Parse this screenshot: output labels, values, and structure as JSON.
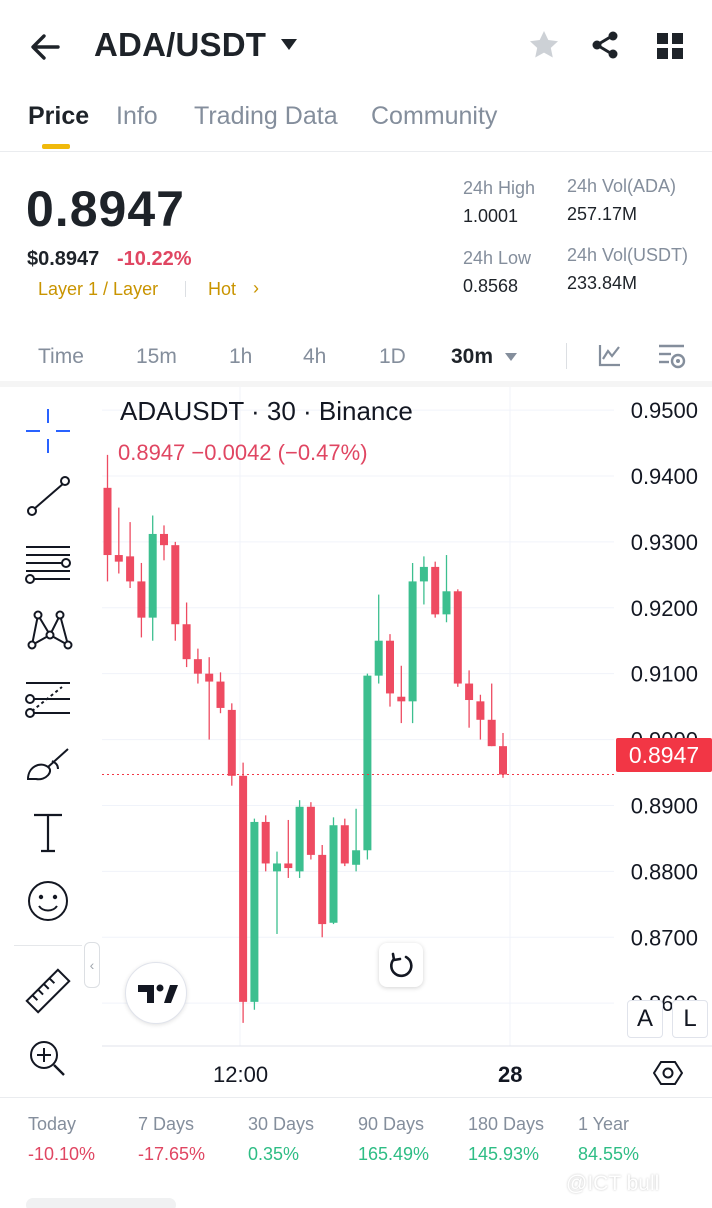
{
  "header": {
    "pair": "ADA/USDT",
    "icons": [
      "back-arrow-icon",
      "caret-down-icon",
      "star-icon",
      "share-icon",
      "grid-menu-icon"
    ]
  },
  "tabs": [
    {
      "label": "Price",
      "active": true
    },
    {
      "label": "Info",
      "active": false
    },
    {
      "label": "Trading Data",
      "active": false
    },
    {
      "label": "Community",
      "active": false
    }
  ],
  "ticker": {
    "price": "0.8947",
    "usd_price": "$0.8947",
    "change": "-10.22%",
    "tag_layer": "Layer 1 / Layer",
    "tag_hot": "Hot",
    "tag_chevron": "›",
    "stats": {
      "high_label": "24h High",
      "high_value": "1.0001",
      "low_label": "24h Low",
      "low_value": "0.8568",
      "vol_base_label": "24h Vol(ADA)",
      "vol_base_value": "257.17M",
      "vol_quote_label": "24h Vol(USDT)",
      "vol_quote_value": "233.84M"
    }
  },
  "timeframes": [
    {
      "label": "Time",
      "active": false
    },
    {
      "label": "15m",
      "active": false
    },
    {
      "label": "1h",
      "active": false
    },
    {
      "label": "4h",
      "active": false
    },
    {
      "label": "1D",
      "active": false
    },
    {
      "label": "30m",
      "active": true
    }
  ],
  "chart": {
    "title": "ADAUSDT · 30 · Binance",
    "ohlc_line": "0.8947  −0.0042 (−0.47%)",
    "last_price_label": "0.8947",
    "price_axis": [
      "0.9500",
      "0.9400",
      "0.9300",
      "0.9200",
      "0.9100",
      "0.9000",
      "0.8900",
      "0.8800",
      "0.8700",
      "0.8600"
    ],
    "time_axis": [
      "12:00",
      "28"
    ],
    "scale_buttons": [
      "A",
      "L"
    ],
    "collapse_glyph": "‹",
    "colors": {
      "up": "#26a69a",
      "up_fill": "#3cbf8f",
      "down": "#f23645",
      "down_fill": "#ee4b61"
    }
  },
  "tools": [
    "crosshair-icon",
    "trend-line-icon",
    "fib-lines-icon",
    "pattern-icon",
    "projection-icon",
    "brush-icon",
    "text-tool-icon",
    "emoji-icon",
    "ruler-icon",
    "zoom-in-icon"
  ],
  "chart_data": {
    "type": "candlestick",
    "title": "ADAUSDT · 30 · Binance",
    "ylim": [
      0.8535,
      0.9535
    ],
    "x_tick_labels": [
      "12:00",
      "28"
    ],
    "y_tick_labels": [
      "0.9500",
      "0.9400",
      "0.9300",
      "0.9200",
      "0.9100",
      "0.9000",
      "0.8900",
      "0.8800",
      "0.8700",
      "0.8600"
    ],
    "last_price": 0.8947,
    "candles": [
      {
        "o": 0.9382,
        "h": 0.9432,
        "l": 0.924,
        "c": 0.928
      },
      {
        "o": 0.928,
        "h": 0.9352,
        "l": 0.9252,
        "c": 0.927
      },
      {
        "o": 0.9278,
        "h": 0.933,
        "l": 0.923,
        "c": 0.924
      },
      {
        "o": 0.924,
        "h": 0.9268,
        "l": 0.9155,
        "c": 0.9185
      },
      {
        "o": 0.9185,
        "h": 0.934,
        "l": 0.915,
        "c": 0.9312
      },
      {
        "o": 0.9312,
        "h": 0.9325,
        "l": 0.9272,
        "c": 0.9295
      },
      {
        "o": 0.9295,
        "h": 0.93,
        "l": 0.915,
        "c": 0.9175
      },
      {
        "o": 0.9175,
        "h": 0.9208,
        "l": 0.911,
        "c": 0.9122
      },
      {
        "o": 0.9122,
        "h": 0.9138,
        "l": 0.9085,
        "c": 0.91
      },
      {
        "o": 0.91,
        "h": 0.9125,
        "l": 0.9,
        "c": 0.9088
      },
      {
        "o": 0.9088,
        "h": 0.9102,
        "l": 0.904,
        "c": 0.9048
      },
      {
        "o": 0.9045,
        "h": 0.9055,
        "l": 0.893,
        "c": 0.8945
      },
      {
        "o": 0.8945,
        "h": 0.8965,
        "l": 0.857,
        "c": 0.8602
      },
      {
        "o": 0.8602,
        "h": 0.888,
        "l": 0.859,
        "c": 0.8875
      },
      {
        "o": 0.8875,
        "h": 0.8885,
        "l": 0.88,
        "c": 0.8812
      },
      {
        "o": 0.88,
        "h": 0.883,
        "l": 0.8705,
        "c": 0.8812
      },
      {
        "o": 0.8812,
        "h": 0.8878,
        "l": 0.879,
        "c": 0.8805
      },
      {
        "o": 0.88,
        "h": 0.8908,
        "l": 0.879,
        "c": 0.8898
      },
      {
        "o": 0.8898,
        "h": 0.8905,
        "l": 0.8818,
        "c": 0.8825
      },
      {
        "o": 0.8825,
        "h": 0.884,
        "l": 0.87,
        "c": 0.872
      },
      {
        "o": 0.8722,
        "h": 0.8882,
        "l": 0.872,
        "c": 0.887
      },
      {
        "o": 0.887,
        "h": 0.888,
        "l": 0.8808,
        "c": 0.8812
      },
      {
        "o": 0.881,
        "h": 0.8895,
        "l": 0.88,
        "c": 0.8832
      },
      {
        "o": 0.8832,
        "h": 0.91,
        "l": 0.8818,
        "c": 0.9097
      },
      {
        "o": 0.9097,
        "h": 0.922,
        "l": 0.9085,
        "c": 0.915
      },
      {
        "o": 0.915,
        "h": 0.916,
        "l": 0.905,
        "c": 0.907
      },
      {
        "o": 0.9065,
        "h": 0.9112,
        "l": 0.9025,
        "c": 0.9058
      },
      {
        "o": 0.9058,
        "h": 0.9268,
        "l": 0.9025,
        "c": 0.924
      },
      {
        "o": 0.924,
        "h": 0.9278,
        "l": 0.9205,
        "c": 0.9262
      },
      {
        "o": 0.9262,
        "h": 0.927,
        "l": 0.9185,
        "c": 0.919
      },
      {
        "o": 0.919,
        "h": 0.928,
        "l": 0.9178,
        "c": 0.9225
      },
      {
        "o": 0.9225,
        "h": 0.9228,
        "l": 0.908,
        "c": 0.9085
      },
      {
        "o": 0.9085,
        "h": 0.9105,
        "l": 0.9018,
        "c": 0.906
      },
      {
        "o": 0.9058,
        "h": 0.9068,
        "l": 0.9,
        "c": 0.903
      },
      {
        "o": 0.903,
        "h": 0.9085,
        "l": 0.899,
        "c": 0.899
      },
      {
        "o": 0.899,
        "h": 0.901,
        "l": 0.8942,
        "c": 0.8947
      }
    ]
  },
  "performance": [
    {
      "label": "Today",
      "value": "-10.10%",
      "sign": "neg"
    },
    {
      "label": "7 Days",
      "value": "-17.65%",
      "sign": "neg"
    },
    {
      "label": "30 Days",
      "value": "0.35%",
      "sign": "pos"
    },
    {
      "label": "90 Days",
      "value": "165.49%",
      "sign": "pos"
    },
    {
      "label": "180 Days",
      "value": "145.93%",
      "sign": "pos"
    },
    {
      "label": "1 Year",
      "value": "84.55%",
      "sign": "pos"
    }
  ],
  "watermark": "@ICT bull"
}
